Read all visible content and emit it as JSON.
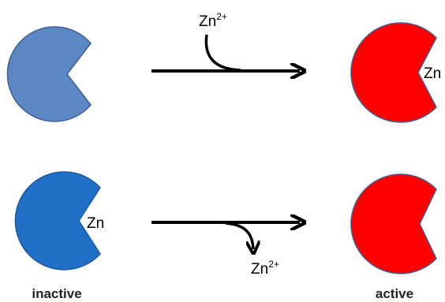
{
  "top_row": {
    "ion_label": "Zn",
    "ion_charge": "2+",
    "bound_label": "Zn"
  },
  "bottom_row": {
    "bound_label": "Zn",
    "ion_label": "Zn",
    "ion_charge": "2+"
  },
  "captions": {
    "left": "inactive",
    "right": "active"
  }
}
